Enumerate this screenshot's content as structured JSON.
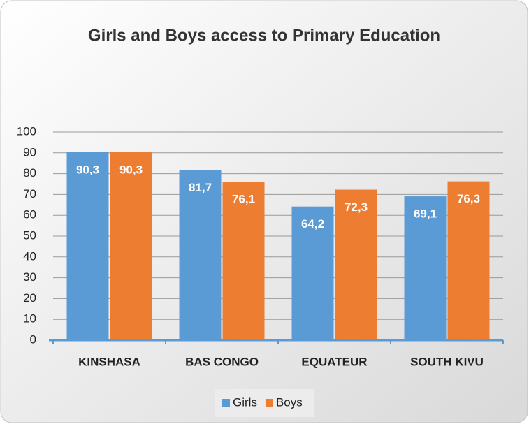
{
  "chart_data": {
    "type": "bar",
    "title": "Girls and Boys access to Primary Education",
    "categories": [
      "KINSHASA",
      "BAS CONGO",
      "EQUATEUR",
      "SOUTH KIVU"
    ],
    "series": [
      {
        "name": "Girls",
        "color": "#5b9bd5",
        "values": [
          90.3,
          81.7,
          64.2,
          69.1
        ],
        "value_labels": [
          "90,3",
          "81,7",
          "64,2",
          "69,1"
        ]
      },
      {
        "name": "Boys",
        "color": "#ed7d31",
        "values": [
          90.3,
          76.1,
          72.3,
          76.3
        ],
        "value_labels": [
          "90,3",
          "76,1",
          "72,3",
          "76,3"
        ]
      }
    ],
    "ylim": [
      0,
      100
    ],
    "yticks": [
      0,
      10,
      20,
      30,
      40,
      50,
      60,
      70,
      80,
      90,
      100
    ],
    "grid": true,
    "legend": "bottom"
  }
}
